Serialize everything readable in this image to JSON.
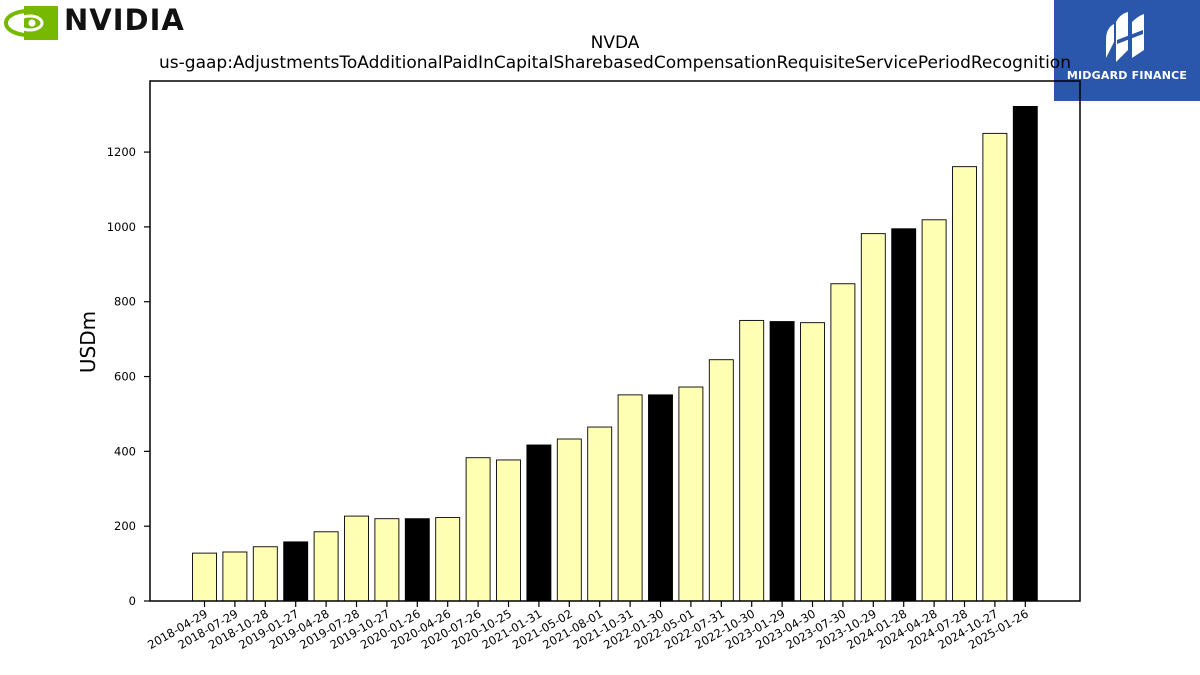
{
  "brand": {
    "nvidia_wordmark": "NVIDIA",
    "midgard_name": "MIDGARD FINANCE",
    "midgard_color": "#2a56ac",
    "nvidia_green": "#76b900"
  },
  "chart_data": {
    "type": "bar",
    "title": "NVDA",
    "subtitle": "us-gaap:AdjustmentsToAdditionalPaidInCapitalSharebasedCompensationRequisiteServicePeriodRecognition",
    "ylabel": "USDm",
    "xlabel": "",
    "ylim": [
      0,
      1390
    ],
    "yticks": [
      0,
      200,
      400,
      600,
      800,
      1000,
      1200
    ],
    "grid": false,
    "colors": {
      "quarter": "#ffffb3",
      "fiscal_year_end": "#000000",
      "edge": "#000000"
    },
    "categories": [
      "2018-04-29",
      "2018-07-29",
      "2018-10-28",
      "2019-01-27",
      "2019-04-28",
      "2019-07-28",
      "2019-10-27",
      "2020-01-26",
      "2020-04-26",
      "2020-07-26",
      "2020-10-25",
      "2021-01-31",
      "2021-05-02",
      "2021-08-01",
      "2021-10-31",
      "2022-01-30",
      "2022-05-01",
      "2022-07-31",
      "2022-10-30",
      "2023-01-29",
      "2023-04-30",
      "2023-07-30",
      "2023-10-29",
      "2024-01-28",
      "2024-04-28",
      "2024-07-28",
      "2024-10-27",
      "2025-01-26"
    ],
    "values": [
      128,
      131,
      145,
      158,
      185,
      227,
      220,
      220,
      223,
      383,
      377,
      417,
      433,
      465,
      551,
      551,
      572,
      645,
      750,
      747,
      744,
      848,
      982,
      995,
      1019,
      1161,
      1250,
      1322
    ],
    "highlight": [
      false,
      false,
      false,
      true,
      false,
      false,
      false,
      true,
      false,
      false,
      false,
      true,
      false,
      false,
      false,
      true,
      false,
      false,
      false,
      true,
      false,
      false,
      false,
      true,
      false,
      false,
      false,
      true
    ]
  }
}
